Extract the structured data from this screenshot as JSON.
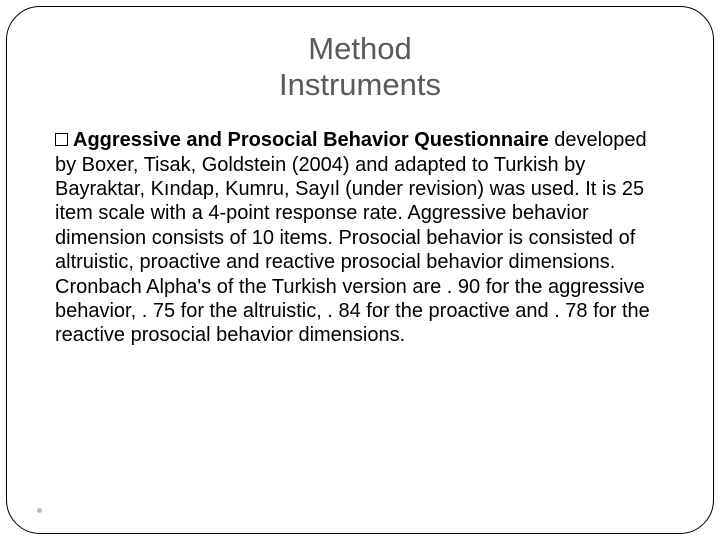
{
  "title": {
    "line1": "Method",
    "line2": "Instruments"
  },
  "body": {
    "bold_heading": "Aggressive and Prosocial Behavior Questionnaire",
    "paragraph": "developed by Boxer, Tisak, Goldstein (2004) and adapted to Turkish by Bayraktar, Kındap, Kumru, Sayıl (under revision) was used. It is 25 item scale with a 4-point response rate. Aggressive behavior dimension consists of 10 items. Prosocial behavior is consisted of altruistic, proactive and reactive prosocial behavior dimensions. Cronbach Alpha's of the Turkish version are . 90 for the aggressive behavior, . 75 for the altruistic, . 84 for the proactive and . 78 for the reactive prosocial behavior dimensions."
  },
  "colors": {
    "title_color": "#5a5a5a",
    "body_color": "#000000",
    "border_color": "#000000",
    "background": "#ffffff"
  },
  "typography": {
    "title_fontsize": 31,
    "body_fontsize": 20
  }
}
